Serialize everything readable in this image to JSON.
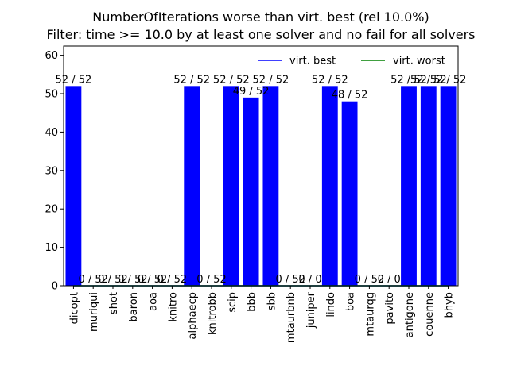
{
  "chart_data": {
    "type": "bar",
    "title": "NumberOfIterations worse than virt. best (rel 10.0%)",
    "subtitle": "Filter: time >= 10.0 by at least one solver and no fail for all solvers",
    "xlabel": "",
    "ylabel": "",
    "ylim": [
      0,
      62.4
    ],
    "yticks": [
      0,
      10,
      20,
      30,
      40,
      50,
      60
    ],
    "legend_position": "top-right",
    "grid": false,
    "categories": [
      "dicopt",
      "muriqui",
      "shot",
      "baron",
      "aoa",
      "knitro",
      "alphaecp",
      "knitrobb",
      "scip",
      "bbb",
      "sbb",
      "mtaurbnb",
      "juniper",
      "lindo",
      "boa",
      "mtaurqg",
      "pavito",
      "antigone",
      "couenne",
      "bhyb"
    ],
    "values": [
      52,
      0,
      0,
      0,
      0,
      0,
      52,
      0,
      52,
      49,
      52,
      0,
      0,
      52,
      48,
      0,
      0,
      52,
      52,
      52
    ],
    "labels": [
      "52 / 52",
      "0 / 52",
      "0 / 52",
      "0 / 52",
      "0 / 52",
      "0 / 52",
      "52 / 52",
      "0 / 52",
      "52 / 52",
      "49 / 52",
      "52 / 52",
      "0 / 52",
      "0 / 0",
      "52 / 52",
      "48 / 52",
      "0 / 52",
      "0 / 0",
      "52 / 52",
      "52 / 52",
      "52 / 52"
    ],
    "bar_color": "#0000ff",
    "series": [
      {
        "name": "virt. best",
        "color": "#0000ff",
        "values": [
          0,
          0,
          0,
          0,
          0,
          0,
          0,
          0,
          0,
          0,
          0,
          0,
          0,
          0,
          0,
          0,
          0,
          0,
          0,
          0
        ]
      },
      {
        "name": "virt. worst",
        "color": "#008000",
        "values": [
          0,
          0,
          0,
          0,
          0,
          0,
          0,
          0,
          0,
          0,
          0,
          0,
          0,
          0,
          0,
          0,
          0,
          0,
          0,
          0
        ]
      }
    ]
  }
}
